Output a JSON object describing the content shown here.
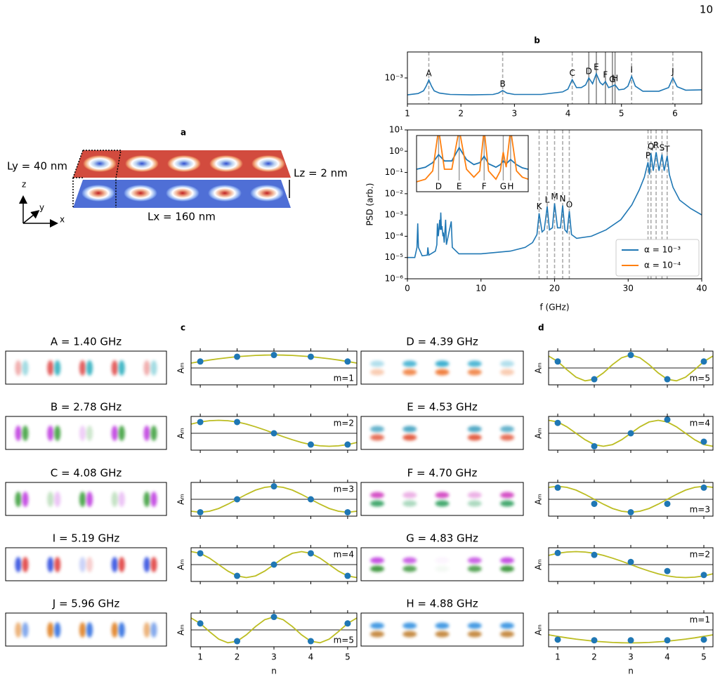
{
  "page_number": "10",
  "panel_a": {
    "label": "a",
    "ly": "Ly = 40 nm",
    "lz": "Lz = 2 nm",
    "lx": "Lx = 160 nm",
    "axes": [
      "z",
      "y",
      "x"
    ]
  },
  "chart_data": [
    {
      "type": "line",
      "title": "b",
      "xlim": [
        1,
        6.5
      ],
      "xticks": [
        1,
        2,
        3,
        4,
        5,
        6
      ],
      "yscale": "log",
      "ylim": [
        0.0002,
        0.005
      ],
      "yticks": [
        {
          "value": 0.001,
          "label": "10⁻³"
        }
      ],
      "x": [
        1,
        1.2,
        1.3,
        1.35,
        1.4,
        1.45,
        1.5,
        1.6,
        1.8,
        2.2,
        2.6,
        2.7,
        2.78,
        2.86,
        3.0,
        3.5,
        3.9,
        4.0,
        4.08,
        4.16,
        4.25,
        4.33,
        4.39,
        4.46,
        4.53,
        4.6,
        4.65,
        4.7,
        4.76,
        4.83,
        4.88,
        4.95,
        5.05,
        5.12,
        5.19,
        5.26,
        5.4,
        5.7,
        5.88,
        5.96,
        6.04,
        6.2,
        6.5
      ],
      "series": [
        {
          "color": "#1f77b4",
          "values": [
            0.00035,
            0.00038,
            0.00045,
            0.0006,
            0.00088,
            0.0006,
            0.00045,
            0.00039,
            0.00036,
            0.00035,
            0.00036,
            0.00039,
            0.00046,
            0.00039,
            0.00036,
            0.00036,
            0.00042,
            0.0005,
            0.0009,
            0.00055,
            0.00055,
            0.00065,
            0.001,
            0.0007,
            0.0013,
            0.00075,
            0.00065,
            0.0008,
            0.00055,
            0.0006,
            0.00065,
            0.00048,
            0.0005,
            0.0006,
            0.0011,
            0.0006,
            0.00044,
            0.00044,
            0.00055,
            0.001,
            0.00058,
            0.00047,
            0.00048
          ]
        }
      ],
      "markers": [
        {
          "label": "A",
          "x": 1.4,
          "line": "dashed"
        },
        {
          "label": "B",
          "x": 2.78,
          "line": "dashed"
        },
        {
          "label": "C",
          "x": 4.08,
          "line": "dashed"
        },
        {
          "label": "D",
          "x": 4.39,
          "line": "solid"
        },
        {
          "label": "E",
          "x": 4.53,
          "line": "solid"
        },
        {
          "label": "F",
          "x": 4.7,
          "line": "solid"
        },
        {
          "label": "G",
          "x": 4.83,
          "line": "solid"
        },
        {
          "label": "H",
          "x": 4.88,
          "line": "solid"
        },
        {
          "label": "I",
          "x": 5.19,
          "line": "dashed"
        },
        {
          "label": "J",
          "x": 5.96,
          "line": "dashed"
        }
      ]
    },
    {
      "type": "line",
      "xlim": [
        0,
        40
      ],
      "xticks": [
        0,
        10,
        20,
        30,
        40
      ],
      "xlabel": "f (GHz)",
      "ylabel": "PSD (arb.)",
      "yscale": "log",
      "ylim": [
        1e-06,
        10
      ],
      "yticks": [
        {
          "value": 1e-06,
          "label": "10⁻⁶"
        },
        {
          "value": 1e-05,
          "label": "10⁻⁵"
        },
        {
          "value": 0.0001,
          "label": "10⁻⁴"
        },
        {
          "value": 0.001,
          "label": "10⁻³"
        },
        {
          "value": 0.01,
          "label": "10⁻²"
        },
        {
          "value": 0.1,
          "label": "10⁻¹"
        },
        {
          "value": 1,
          "label": "10⁰"
        },
        {
          "value": 10,
          "label": "10¹"
        }
      ],
      "legend": "lower right",
      "x": [
        0,
        1,
        1.3,
        1.4,
        1.5,
        2,
        2.7,
        2.78,
        2.9,
        3.8,
        4.0,
        4.08,
        4.2,
        4.39,
        4.46,
        4.53,
        4.62,
        4.7,
        4.83,
        4.88,
        5.0,
        5.19,
        5.3,
        5.96,
        6.1,
        7,
        10,
        14,
        16,
        17,
        17.6,
        17.9,
        18.3,
        18.6,
        19.0,
        19.3,
        19.7,
        20.0,
        20.4,
        20.8,
        21.1,
        21.4,
        21.7,
        22.0,
        22.3,
        23,
        25,
        27,
        29,
        30.5,
        31.5,
        32.2,
        32.7,
        32.9,
        33.1,
        33.4,
        33.8,
        34.2,
        34.6,
        34.9,
        35.3,
        35.6,
        36.1,
        37,
        38.5,
        40
      ],
      "series": [
        {
          "name": "α = 10⁻³",
          "color": "#1f77b4",
          "values": [
            1e-05,
            1e-05,
            3e-05,
            0.0004,
            3e-05,
            1.2e-05,
            1.3e-05,
            3e-05,
            1.3e-05,
            2e-05,
            4e-05,
            0.0004,
            0.0001,
            0.0006,
            0.0002,
            0.0013,
            0.0002,
            0.0003,
            0.0001,
            0.00015,
            5e-05,
            0.0006,
            4e-05,
            0.0005,
            3e-05,
            1.5e-05,
            1.5e-05,
            2e-05,
            3e-05,
            5e-05,
            0.00012,
            0.0012,
            0.00016,
            0.0002,
            0.0025,
            0.0002,
            0.00025,
            0.0035,
            0.00025,
            0.00025,
            0.0028,
            0.0002,
            0.00015,
            0.0015,
            0.00012,
            8e-05,
            0.0001,
            0.0002,
            0.0006,
            0.003,
            0.015,
            0.06,
            0.3,
            0.08,
            0.8,
            0.12,
            0.9,
            0.12,
            0.7,
            0.12,
            0.6,
            0.08,
            0.02,
            0.005,
            0.002,
            0.001
          ]
        }
      ],
      "markers": [
        {
          "label": "K",
          "x": 17.9
        },
        {
          "label": "L",
          "x": 19.0
        },
        {
          "label": "M",
          "x": 20.0
        },
        {
          "label": "N",
          "x": 21.1
        },
        {
          "label": "O",
          "x": 22.0
        },
        {
          "label": "P",
          "x": 32.7
        },
        {
          "label": "Q",
          "x": 33.1
        },
        {
          "label": "R",
          "x": 33.8
        },
        {
          "label": "S",
          "x": 34.6
        },
        {
          "label": "T",
          "x": 35.3
        }
      ],
      "inset": {
        "xlim": [
          4.24,
          5.0
        ],
        "yscale": "log",
        "ylim": [
          0.01,
          5
        ],
        "x": [
          4.24,
          4.3,
          4.35,
          4.39,
          4.43,
          4.48,
          4.53,
          4.58,
          4.63,
          4.67,
          4.7,
          4.73,
          4.78,
          4.81,
          4.83,
          4.85,
          4.88,
          4.92,
          4.96,
          5.0
        ],
        "series": [
          {
            "color": "#1f77b4",
            "values": [
              0.12,
              0.15,
              0.25,
              0.6,
              0.3,
              0.3,
              1.3,
              0.35,
              0.2,
              0.25,
              0.5,
              0.22,
              0.15,
              0.2,
              0.3,
              0.22,
              0.35,
              0.2,
              0.14,
              0.12
            ]
          },
          {
            "name": "α = 10⁻⁴",
            "color": "#ff7f0e",
            "values": [
              0.03,
              0.04,
              0.1,
              10,
              0.12,
              0.12,
              10,
              0.12,
              0.05,
              0.1,
              10,
              0.1,
              0.04,
              0.1,
              0.8,
              0.15,
              10,
              0.1,
              0.05,
              0.04
            ]
          }
        ],
        "markers": [
          {
            "label": "D",
            "x": 4.39
          },
          {
            "label": "E",
            "x": 4.53
          },
          {
            "label": "F",
            "x": 4.7
          },
          {
            "label": "G",
            "x": 4.83
          },
          {
            "label": "H",
            "x": 4.88
          }
        ]
      }
    },
    {
      "type": "modes",
      "label": "c",
      "xlabel": "n",
      "ylabel": "Aₘ",
      "x": [
        1,
        2,
        3,
        4,
        5
      ],
      "xticks": [
        1,
        2,
        3,
        4,
        5
      ],
      "xlim": [
        0.75,
        5.25
      ],
      "ylim": [
        -1.3,
        1.3
      ],
      "point_color": "#1f77b4",
      "fit_color": "#bcbd22",
      "fit_x": [
        0.75,
        1,
        1.25,
        1.5,
        1.75,
        2,
        2.25,
        2.5,
        2.75,
        3,
        3.25,
        3.5,
        3.75,
        4,
        4.25,
        4.5,
        4.75,
        5,
        5.25
      ],
      "rows": [
        {
          "title": "A = 1.40 GHz",
          "mode": "m=1",
          "values": [
            0.5,
            0.87,
            1,
            0.87,
            0.5
          ],
          "fit": [
            0.38,
            0.5,
            0.61,
            0.71,
            0.79,
            0.87,
            0.92,
            0.97,
            0.99,
            1,
            0.99,
            0.97,
            0.92,
            0.87,
            0.79,
            0.71,
            0.61,
            0.5,
            0.38
          ]
        },
        {
          "title": "B = 2.78 GHz",
          "mode": "m=2",
          "values": [
            0.87,
            0.87,
            0,
            -0.87,
            -0.87
          ],
          "fit": [
            0.71,
            0.87,
            0.97,
            1,
            0.97,
            0.87,
            0.71,
            0.5,
            0.26,
            0,
            -0.26,
            -0.5,
            -0.71,
            -0.87,
            -0.97,
            -1,
            -0.97,
            -0.87,
            -0.71
          ]
        },
        {
          "title": "C = 4.08 GHz",
          "mode": "m=3",
          "values": [
            -1,
            0,
            1,
            0,
            -1
          ],
          "fit": [
            -0.92,
            -1,
            -0.92,
            -0.71,
            -0.38,
            0,
            0.38,
            0.71,
            0.92,
            1,
            0.92,
            0.71,
            0.38,
            0,
            -0.38,
            -0.71,
            -0.92,
            -1,
            -0.92
          ]
        },
        {
          "title": "I = 5.19 GHz",
          "mode": "m=4",
          "values": [
            0.87,
            -0.87,
            0,
            0.87,
            -0.87
          ],
          "fit": [
            1,
            0.87,
            0.5,
            0,
            -0.5,
            -0.87,
            -1,
            -0.87,
            -0.5,
            0,
            0.5,
            0.87,
            1,
            0.87,
            0.5,
            0,
            -0.5,
            -0.87,
            -1
          ]
        },
        {
          "title": "J = 5.96 GHz",
          "mode": "m=5",
          "values": [
            0.5,
            -0.87,
            1,
            -0.87,
            0.5
          ],
          "fit": [
            0.92,
            0.5,
            -0.13,
            -0.71,
            -0.99,
            -0.87,
            -0.38,
            0.26,
            0.79,
            1,
            0.79,
            0.26,
            -0.38,
            -0.87,
            -0.99,
            -0.71,
            -0.13,
            0.5,
            0.92
          ]
        }
      ]
    },
    {
      "type": "modes",
      "label": "d",
      "xlabel": "n",
      "ylabel": "Aₘ",
      "x": [
        1,
        2,
        3,
        4,
        5
      ],
      "xticks": [
        1,
        2,
        3,
        4,
        5
      ],
      "xlim": [
        0.75,
        5.25
      ],
      "ylim": [
        -1.3,
        1.3
      ],
      "point_color": "#1f77b4",
      "fit_color": "#bcbd22",
      "fit_x": [
        0.75,
        1,
        1.25,
        1.5,
        1.75,
        2,
        2.25,
        2.5,
        2.75,
        3,
        3.25,
        3.5,
        3.75,
        4,
        4.25,
        4.5,
        4.75,
        5,
        5.25
      ],
      "rows": [
        {
          "title": "D = 4.39 GHz",
          "mode": "m=5",
          "values": [
            0.5,
            -0.87,
            1,
            -0.87,
            0.5
          ],
          "fit": [
            0.92,
            0.5,
            -0.13,
            -0.71,
            -0.99,
            -0.87,
            -0.38,
            0.26,
            0.79,
            1,
            0.79,
            0.26,
            -0.38,
            -0.87,
            -0.99,
            -0.71,
            -0.13,
            0.5,
            0.92
          ]
        },
        {
          "title": "E = 4.53 GHz",
          "mode": "m=4",
          "values": [
            0.8,
            -1,
            0,
            1.05,
            -0.65
          ],
          "fit": [
            1,
            0.87,
            0.5,
            0,
            -0.5,
            -0.87,
            -1,
            -0.87,
            -0.5,
            0,
            0.5,
            0.87,
            1,
            0.87,
            0.5,
            0,
            -0.5,
            -0.87,
            -1
          ]
        },
        {
          "title": "F = 4.70 GHz",
          "mode": "m=3",
          "values": [
            0.9,
            -0.35,
            -1,
            -0.35,
            0.9
          ],
          "fit": [
            0.92,
            1,
            0.92,
            0.71,
            0.38,
            0,
            -0.38,
            -0.71,
            -0.92,
            -1,
            -0.92,
            -0.71,
            -0.38,
            0,
            0.38,
            0.71,
            0.92,
            1,
            0.92
          ]
        },
        {
          "title": "G = 4.83 GHz",
          "mode": "m=2",
          "values": [
            0.9,
            0.75,
            0.2,
            -0.5,
            -0.8
          ],
          "fit": [
            0.71,
            0.87,
            0.97,
            1,
            0.97,
            0.87,
            0.71,
            0.5,
            0.26,
            0,
            -0.26,
            -0.5,
            -0.71,
            -0.87,
            -0.97,
            -1,
            -0.97,
            -0.87,
            -0.71
          ]
        },
        {
          "title": "H = 4.88 GHz",
          "mode": "m=1",
          "values": [
            -0.75,
            -0.8,
            -0.8,
            -0.8,
            -0.75
          ],
          "fit": [
            -0.38,
            -0.5,
            -0.61,
            -0.71,
            -0.79,
            -0.87,
            -0.92,
            -0.97,
            -0.99,
            -1,
            -0.99,
            -0.97,
            -0.92,
            -0.87,
            -0.79,
            -0.71,
            -0.61,
            -0.5,
            -0.38
          ]
        }
      ]
    }
  ]
}
